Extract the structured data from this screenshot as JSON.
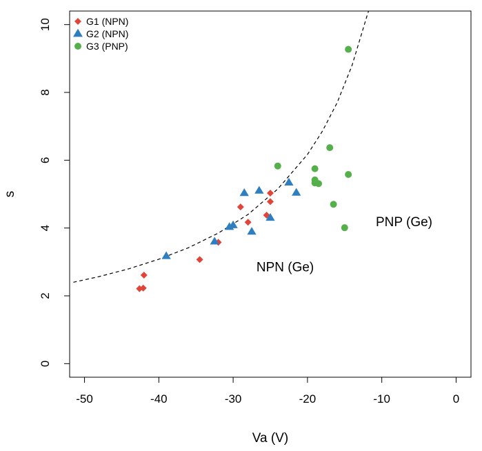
{
  "chart_data": {
    "type": "scatter",
    "title": "",
    "xlabel": "Va (V)",
    "ylabel": "s",
    "xlim": [
      -52,
      2
    ],
    "ylim": [
      -0.4,
      10.4
    ],
    "xticks": [
      -50,
      -40,
      -30,
      -20,
      -10,
      0
    ],
    "yticks": [
      0,
      2,
      4,
      6,
      8,
      10
    ],
    "xtick_labels": [
      "-50",
      "-40",
      "-30",
      "-20",
      "-10",
      "0"
    ],
    "ytick_labels": [
      "0",
      "2",
      "4",
      "6",
      "8",
      "10"
    ],
    "grid": false,
    "legend_position": "top-left",
    "colors": {
      "G1": "#e0453a",
      "G2": "#2f7ec0",
      "G3": "#55b04c"
    },
    "series": [
      {
        "name": "G1 (NPN)",
        "marker": "diamond",
        "color": "#e0453a",
        "points": [
          [
            -42.6,
            2.21
          ],
          [
            -42.1,
            2.23
          ],
          [
            -42.0,
            2.61
          ],
          [
            -34.5,
            3.07
          ],
          [
            -32.0,
            3.58
          ],
          [
            -29.0,
            4.62
          ],
          [
            -28.0,
            4.17
          ],
          [
            -25.5,
            4.38
          ],
          [
            -25.0,
            4.78
          ],
          [
            -25.0,
            5.03
          ]
        ]
      },
      {
        "name": "G2 (NPN)",
        "marker": "triangle",
        "color": "#2f7ec0",
        "points": [
          [
            -39.0,
            3.17
          ],
          [
            -32.5,
            3.6
          ],
          [
            -30.5,
            4.03
          ],
          [
            -30.0,
            4.08
          ],
          [
            -28.5,
            5.03
          ],
          [
            -27.5,
            3.89
          ],
          [
            -26.5,
            5.1
          ],
          [
            -25.0,
            4.3
          ],
          [
            -22.5,
            5.34
          ],
          [
            -21.5,
            5.04
          ]
        ]
      },
      {
        "name": "G3 (PNP)",
        "marker": "circle",
        "color": "#55b04c",
        "points": [
          [
            -24.0,
            5.83
          ],
          [
            -19.0,
            5.75
          ],
          [
            -19.0,
            5.42
          ],
          [
            -19.0,
            5.33
          ],
          [
            -18.5,
            5.31
          ],
          [
            -17.0,
            6.37
          ],
          [
            -16.5,
            4.7
          ],
          [
            -15.0,
            4.01
          ],
          [
            -14.5,
            9.27
          ],
          [
            -14.5,
            5.58
          ]
        ]
      }
    ],
    "curve": {
      "style": "dashed",
      "points": [
        [
          -51.5,
          2.4
        ],
        [
          -48.0,
          2.57
        ],
        [
          -44.0,
          2.8
        ],
        [
          -40.0,
          3.08
        ],
        [
          -36.0,
          3.42
        ],
        [
          -32.0,
          3.85
        ],
        [
          -28.0,
          4.4
        ],
        [
          -24.0,
          5.15
        ],
        [
          -20.0,
          6.17
        ],
        [
          -18.0,
          6.85
        ],
        [
          -16.0,
          7.7
        ],
        [
          -14.0,
          8.8
        ],
        [
          -12.0,
          10.25
        ],
        [
          -10.9,
          11.0
        ]
      ]
    },
    "annotations": [
      {
        "text": "NPN (Ge)",
        "x": -23.0,
        "y": 2.72
      },
      {
        "text": "PNP (Ge)",
        "x": -7.0,
        "y": 4.05
      }
    ]
  }
}
